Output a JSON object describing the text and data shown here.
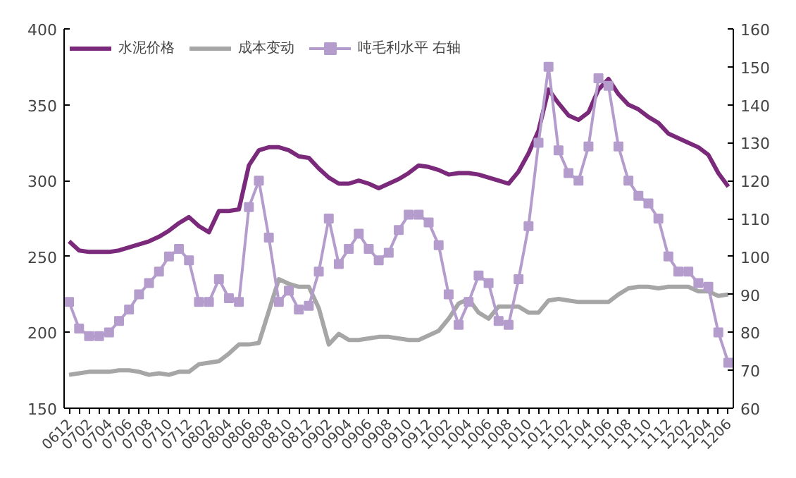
{
  "chart_data": {
    "type": "line",
    "categories": [
      "0612",
      null,
      "0702",
      null,
      "0704",
      null,
      "0706",
      null,
      "0708",
      null,
      "0710",
      null,
      "0712",
      null,
      "0802",
      null,
      "0804",
      null,
      "0806",
      null,
      "0808",
      null,
      "0810",
      null,
      "0812",
      null,
      "0902",
      null,
      "0904",
      null,
      "0906",
      null,
      "0908",
      null,
      "0910",
      null,
      "0912",
      null,
      "1002",
      null,
      "1004",
      null,
      "1006",
      null,
      "1008",
      null,
      "1010",
      null,
      "1012",
      null,
      "1102",
      null,
      "1104",
      null,
      "1106",
      null,
      "1108",
      null,
      "1110",
      null,
      "1112",
      null,
      "1202",
      null,
      "1204",
      null,
      "1206"
    ],
    "series": [
      {
        "name": "水泥价格",
        "color": "#7b2a7b",
        "values": [
          260,
          254,
          253,
          253,
          253,
          254,
          256,
          258,
          260,
          263,
          267,
          272,
          276,
          270,
          266,
          280,
          280,
          281,
          310,
          320,
          322,
          322,
          320,
          316,
          315,
          308,
          302,
          298,
          298,
          300,
          298,
          295,
          298,
          301,
          305,
          310,
          309,
          307,
          304,
          305,
          305,
          304,
          302,
          300,
          298,
          306,
          318,
          333,
          360,
          351,
          343,
          340,
          345,
          360,
          367,
          357,
          350,
          347,
          342,
          338,
          331,
          328,
          325,
          322,
          317,
          305,
          296
        ]
      },
      {
        "name": "成本变动",
        "color": "#a6a6a6",
        "values": [
          172,
          173,
          174,
          174,
          174,
          175,
          175,
          174,
          172,
          173,
          172,
          174,
          174,
          179,
          180,
          181,
          186,
          192,
          192,
          193,
          214,
          235,
          232,
          230,
          230,
          216,
          192,
          199,
          195,
          195,
          196,
          197,
          197,
          196,
          195,
          195,
          198,
          201,
          209,
          219,
          222,
          213,
          209,
          217,
          217,
          217,
          213,
          213,
          221,
          222,
          221,
          220,
          220,
          220,
          220,
          225,
          229,
          230,
          230,
          229,
          230,
          230,
          230,
          227,
          227,
          224,
          225
        ]
      },
      {
        "name": "吨毛利水平 右轴",
        "color": "#b49ccc",
        "axis": "y2",
        "marker": "square",
        "values": [
          88,
          81,
          79,
          79,
          80,
          83,
          86,
          90,
          93,
          96,
          100,
          102,
          99,
          88,
          88,
          94,
          89,
          88,
          113,
          120,
          105,
          88,
          91,
          86,
          87,
          96,
          110,
          98,
          102,
          106,
          102,
          99,
          101,
          107,
          111,
          111,
          109,
          103,
          90,
          82,
          88,
          95,
          93,
          83,
          82,
          94,
          108,
          130,
          150,
          128,
          122,
          120,
          129,
          147,
          145,
          129,
          120,
          116,
          114,
          110,
          100,
          96,
          96,
          93,
          92,
          80,
          72
        ]
      }
    ],
    "ylim": [
      150,
      400
    ],
    "yticks": [
      150,
      200,
      250,
      300,
      350,
      400
    ],
    "y2lim": [
      60,
      160
    ],
    "y2ticks": [
      60,
      70,
      80,
      90,
      100,
      110,
      120,
      130,
      140,
      150,
      160
    ],
    "legend": "top left"
  }
}
